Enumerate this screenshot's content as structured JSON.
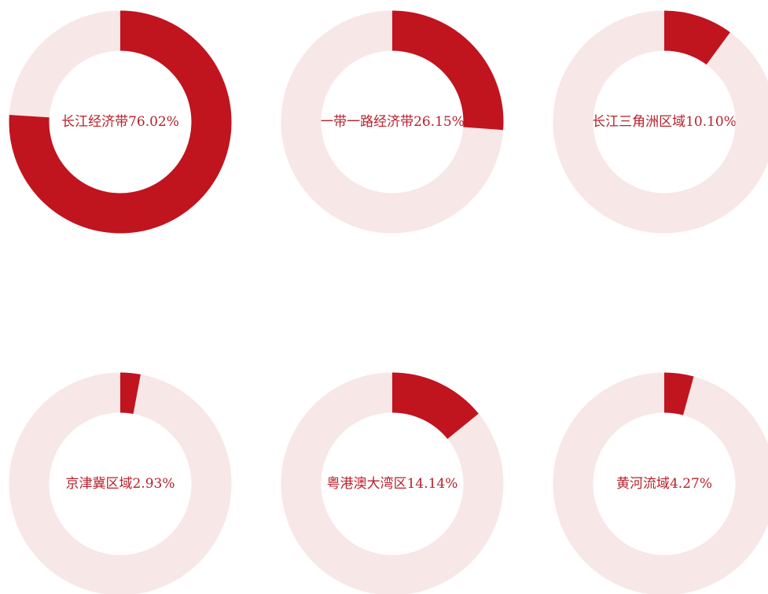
{
  "chart_data": [
    {
      "type": "donut",
      "label": "长江经济带",
      "value": 76.02,
      "value_label": "76.02%",
      "color": "#c0141f",
      "track_color": "#f8e7e7"
    },
    {
      "type": "donut",
      "label": "一带一路经济带",
      "value": 26.15,
      "value_label": "26.15%",
      "color": "#c0141f",
      "track_color": "#f8e7e7"
    },
    {
      "type": "donut",
      "label": "长江三角洲区域",
      "value": 10.1,
      "value_label": "10.10%",
      "color": "#c0141f",
      "track_color": "#f8e7e7"
    },
    {
      "type": "donut",
      "label": "京津冀区域",
      "value": 2.93,
      "value_label": "2.93%",
      "color": "#c0141f",
      "track_color": "#f8e7e7"
    },
    {
      "type": "donut",
      "label": "粤港澳大湾区",
      "value": 14.14,
      "value_label": "14.14%",
      "color": "#c0141f",
      "track_color": "#f8e7e7"
    },
    {
      "type": "donut",
      "label": "黄河流域",
      "value": 4.27,
      "value_label": "4.27%",
      "color": "#c0141f",
      "track_color": "#f8e7e7"
    }
  ]
}
